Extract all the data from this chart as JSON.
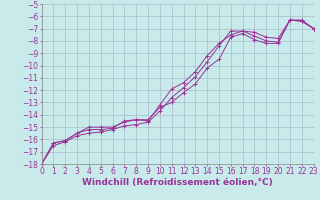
{
  "xlabel": "Windchill (Refroidissement éolien,°C)",
  "bg_color": "#c8eaea",
  "grid_color": "#aab8cc",
  "line_color": "#993399",
  "xlim": [
    0,
    23
  ],
  "ylim": [
    -18,
    -5
  ],
  "xticks": [
    0,
    1,
    2,
    3,
    4,
    5,
    6,
    7,
    8,
    9,
    10,
    11,
    12,
    13,
    14,
    15,
    16,
    17,
    18,
    19,
    20,
    21,
    22,
    23
  ],
  "yticks": [
    -18,
    -17,
    -16,
    -15,
    -14,
    -13,
    -12,
    -11,
    -10,
    -9,
    -8,
    -7,
    -6,
    -5
  ],
  "line1_x": [
    0,
    1,
    2,
    3,
    4,
    5,
    6,
    7,
    8,
    9,
    10,
    11,
    12,
    13,
    14,
    15,
    16,
    17,
    18,
    19,
    20,
    21,
    22,
    23
  ],
  "line1_y": [
    -18,
    -16.3,
    -16.1,
    -15.5,
    -15.2,
    -15.2,
    -15.1,
    -14.5,
    -14.4,
    -14.4,
    -13.4,
    -13.0,
    -12.2,
    -11.5,
    -10.2,
    -9.5,
    -7.7,
    -7.4,
    -7.9,
    -8.2,
    -8.2,
    -6.3,
    -6.3,
    -7.0
  ],
  "line2_x": [
    0,
    1,
    2,
    3,
    4,
    5,
    6,
    7,
    8,
    9,
    10,
    11,
    12,
    13,
    14,
    15,
    16,
    17,
    18,
    19,
    20,
    21,
    22,
    23
  ],
  "line2_y": [
    -18,
    -16.3,
    -16.1,
    -15.5,
    -15.0,
    -15.0,
    -15.0,
    -14.6,
    -14.4,
    -14.5,
    -13.2,
    -11.9,
    -11.4,
    -10.5,
    -9.2,
    -8.2,
    -7.5,
    -7.2,
    -7.3,
    -7.7,
    -7.8,
    -6.3,
    -6.4,
    -7.0
  ],
  "line3_x": [
    0,
    1,
    2,
    3,
    4,
    5,
    6,
    7,
    8,
    9,
    10,
    11,
    12,
    13,
    14,
    15,
    16,
    17,
    18,
    19,
    20,
    21,
    22,
    23
  ],
  "line3_y": [
    -18,
    -16.5,
    -16.2,
    -15.7,
    -15.5,
    -15.4,
    -15.2,
    -14.9,
    -14.8,
    -14.6,
    -13.7,
    -12.6,
    -11.8,
    -10.9,
    -9.7,
    -8.4,
    -7.2,
    -7.2,
    -7.6,
    -8.0,
    -8.1,
    -6.3,
    -6.4,
    -7.0
  ],
  "tick_fontsize": 5.5,
  "xlabel_fontsize": 6.5
}
